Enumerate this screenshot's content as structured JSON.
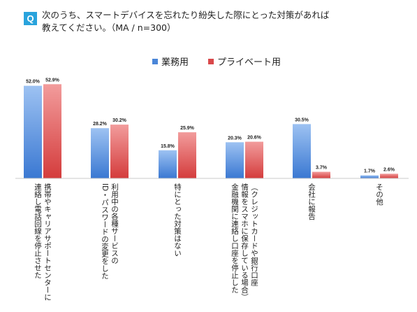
{
  "question": {
    "badge": "Q",
    "line1": "次のうち、スマートデバイスを忘れたり紛失した際にとった対策があれば",
    "line2": "教えてください。（MA / n=300）"
  },
  "colors": {
    "business": "#4a86d8",
    "private": "#d9484a"
  },
  "chart_data": {
    "type": "bar",
    "title": "",
    "categories": [
      "携帯やキャリアサポートセンターに連絡し電話回線を停止させた",
      "利用中の各種サービスのID・パスワードの変更をした",
      "特にとった対策はない",
      "（クレジットカードや銀行口座情報をスマホに保存している場合）金融機関に連絡し口座を停止した",
      "会社に報告",
      "その他"
    ],
    "category_lines": [
      [
        "携帯やキャリアサポートセンターに",
        "連絡し電話回線を停止させた"
      ],
      [
        "利用中の各種サービスの",
        "ID・パスワードの変更をした"
      ],
      [
        "特にとった対策はない"
      ],
      [
        "（クレジットカードや銀行口座",
        "情報をスマホに保存している場合）",
        "金融機関に連絡し口座を停止した"
      ],
      [
        "会社に報告"
      ],
      [
        "その他"
      ]
    ],
    "series": [
      {
        "name": "業務用",
        "values": [
          52.0,
          28.2,
          15.8,
          20.3,
          30.5,
          1.7
        ],
        "labels": [
          "52.0%",
          "28.2%",
          "15.8%",
          "20.3%",
          "30.5%",
          "1.7%"
        ]
      },
      {
        "name": "プライベート用",
        "values": [
          52.9,
          30.2,
          25.9,
          20.6,
          3.7,
          2.6
        ],
        "labels": [
          "52.9%",
          "30.2%",
          "25.9%",
          "20.6%",
          "3.7%",
          "2.6%"
        ]
      }
    ],
    "ylim": [
      0,
      55
    ],
    "legend": "top-center",
    "grid": false
  }
}
